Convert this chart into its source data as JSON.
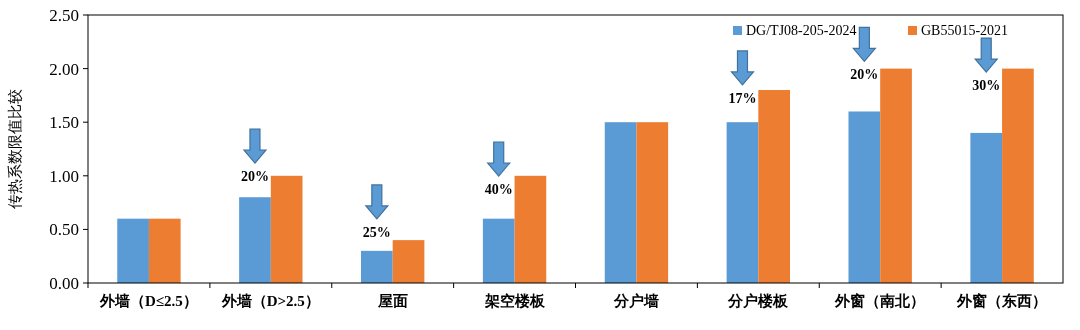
{
  "chart_data": {
    "type": "bar",
    "ylabel": "传热系数限值比较",
    "categories": [
      "外墙（D≤2.5）",
      "外墙（D>2.5）",
      "屋面",
      "架空楼板",
      "分户墙",
      "分户楼板",
      "外窗（南北）",
      "外窗（东西）"
    ],
    "series": [
      {
        "name": "DG/TJ08-205-2024",
        "color": "#5b9bd5",
        "values": [
          0.6,
          0.8,
          0.3,
          0.6,
          1.5,
          1.5,
          1.6,
          1.4
        ]
      },
      {
        "name": "GB55015-2021",
        "color": "#ed7d31",
        "values": [
          0.6,
          1.0,
          0.4,
          1.0,
          1.5,
          1.8,
          2.0,
          2.0
        ]
      }
    ],
    "ylim": [
      0,
      2.5
    ],
    "yticks": [
      {
        "value": 0,
        "label": "0.00"
      },
      {
        "value": 0.5,
        "label": "0.50"
      },
      {
        "value": 1,
        "label": "1.00"
      },
      {
        "value": 1.5,
        "label": "1.50"
      },
      {
        "value": 2,
        "label": "2.00"
      },
      {
        "value": 2.5,
        "label": "2.50"
      }
    ],
    "legend": "top right",
    "annotations": [
      {
        "text": "20%",
        "x": "外墙（D>2.5）",
        "y": 0.95
      },
      {
        "text": "25%",
        "x": "屋面",
        "y": 0.43
      },
      {
        "text": "40%",
        "x": "架空楼板",
        "y": 0.83
      },
      {
        "text": "17%",
        "x": "分户楼板",
        "y": 1.68
      },
      {
        "text": "20%",
        "x": "外窗（南北）",
        "y": 1.9
      },
      {
        "text": "30%",
        "x": "外窗（东西）",
        "y": 1.8
      }
    ]
  }
}
